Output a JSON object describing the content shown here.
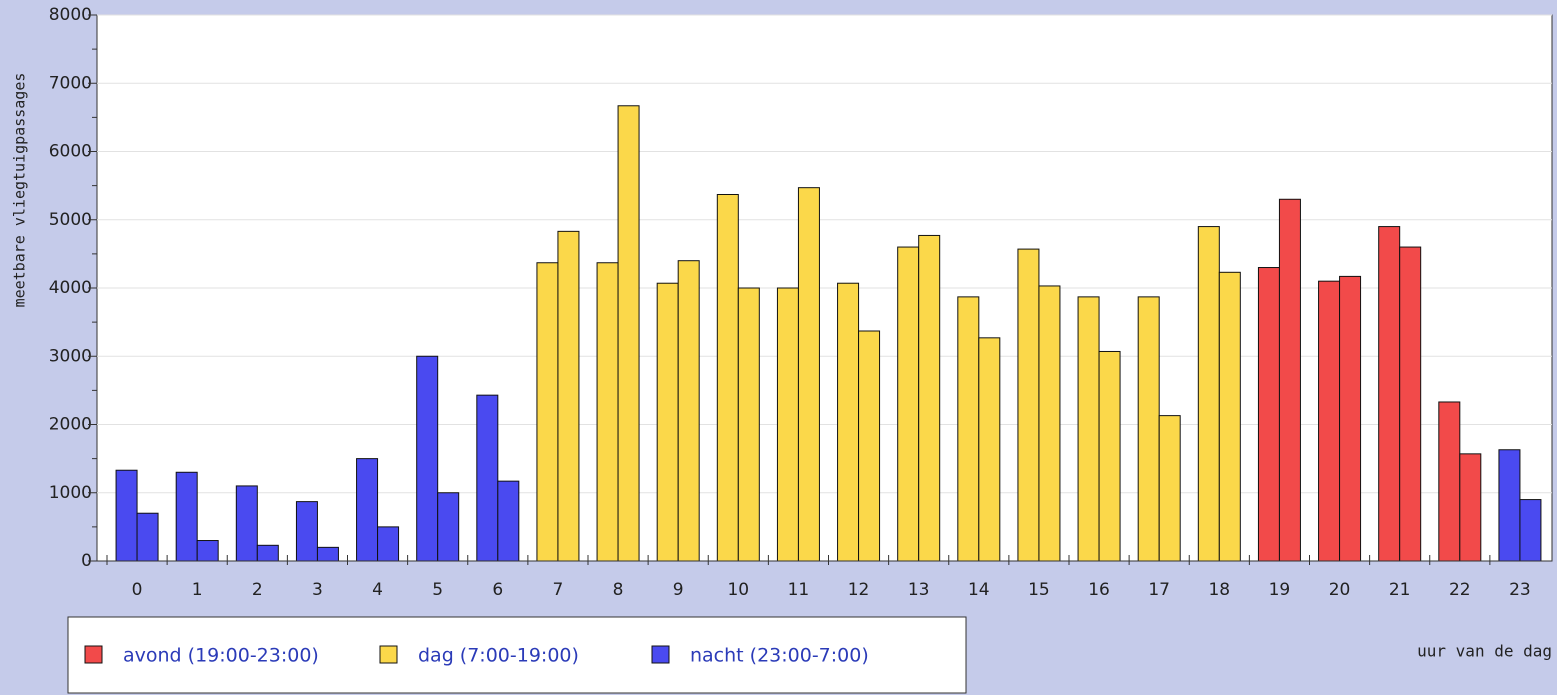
{
  "chart_data": {
    "type": "bar",
    "y_label": "meetbare vliegtuigpassages",
    "x_label": "uur van de dag",
    "categories": [
      "0",
      "1",
      "2",
      "3",
      "4",
      "5",
      "6",
      "7",
      "8",
      "9",
      "10",
      "11",
      "12",
      "13",
      "14",
      "15",
      "16",
      "17",
      "18",
      "19",
      "20",
      "21",
      "22",
      "23"
    ],
    "series": [
      {
        "name": "avond (19:00-23:00)",
        "color": "#f24a4a",
        "values": [
          null,
          null,
          null,
          null,
          null,
          null,
          null,
          null,
          null,
          null,
          null,
          null,
          null,
          null,
          null,
          null,
          null,
          null,
          null,
          [
            4300,
            5300
          ],
          [
            4100,
            4170
          ],
          [
            4900,
            4600
          ],
          [
            2330,
            1570
          ],
          null
        ]
      },
      {
        "name": "dag (7:00-19:00)",
        "color": "#fbd84a",
        "values": [
          null,
          null,
          null,
          null,
          null,
          null,
          null,
          [
            4370,
            4830
          ],
          [
            4370,
            6670
          ],
          [
            4070,
            4400
          ],
          [
            5370,
            4000
          ],
          [
            4000,
            5470
          ],
          [
            4070,
            3370
          ],
          [
            4600,
            4770
          ],
          [
            3870,
            3270
          ],
          [
            4570,
            4030
          ],
          [
            3870,
            3070
          ],
          [
            3870,
            2130
          ],
          [
            4900,
            4230
          ],
          null,
          null,
          null,
          null,
          null
        ]
      },
      {
        "name": "nacht (23:00-7:00)",
        "color": "#4a4af0",
        "values": [
          [
            1330,
            700
          ],
          [
            1300,
            300
          ],
          [
            1100,
            230
          ],
          [
            870,
            200
          ],
          [
            1500,
            500
          ],
          [
            3000,
            1000
          ],
          [
            2430,
            1170
          ],
          null,
          null,
          null,
          null,
          null,
          null,
          null,
          null,
          null,
          null,
          null,
          null,
          null,
          null,
          null,
          null,
          [
            1630,
            900
          ]
        ]
      }
    ],
    "ylim": [
      0,
      8000
    ],
    "yticks": [
      0,
      1000,
      2000,
      3000,
      4000,
      5000,
      6000,
      7000,
      8000
    ],
    "grid": true
  }
}
